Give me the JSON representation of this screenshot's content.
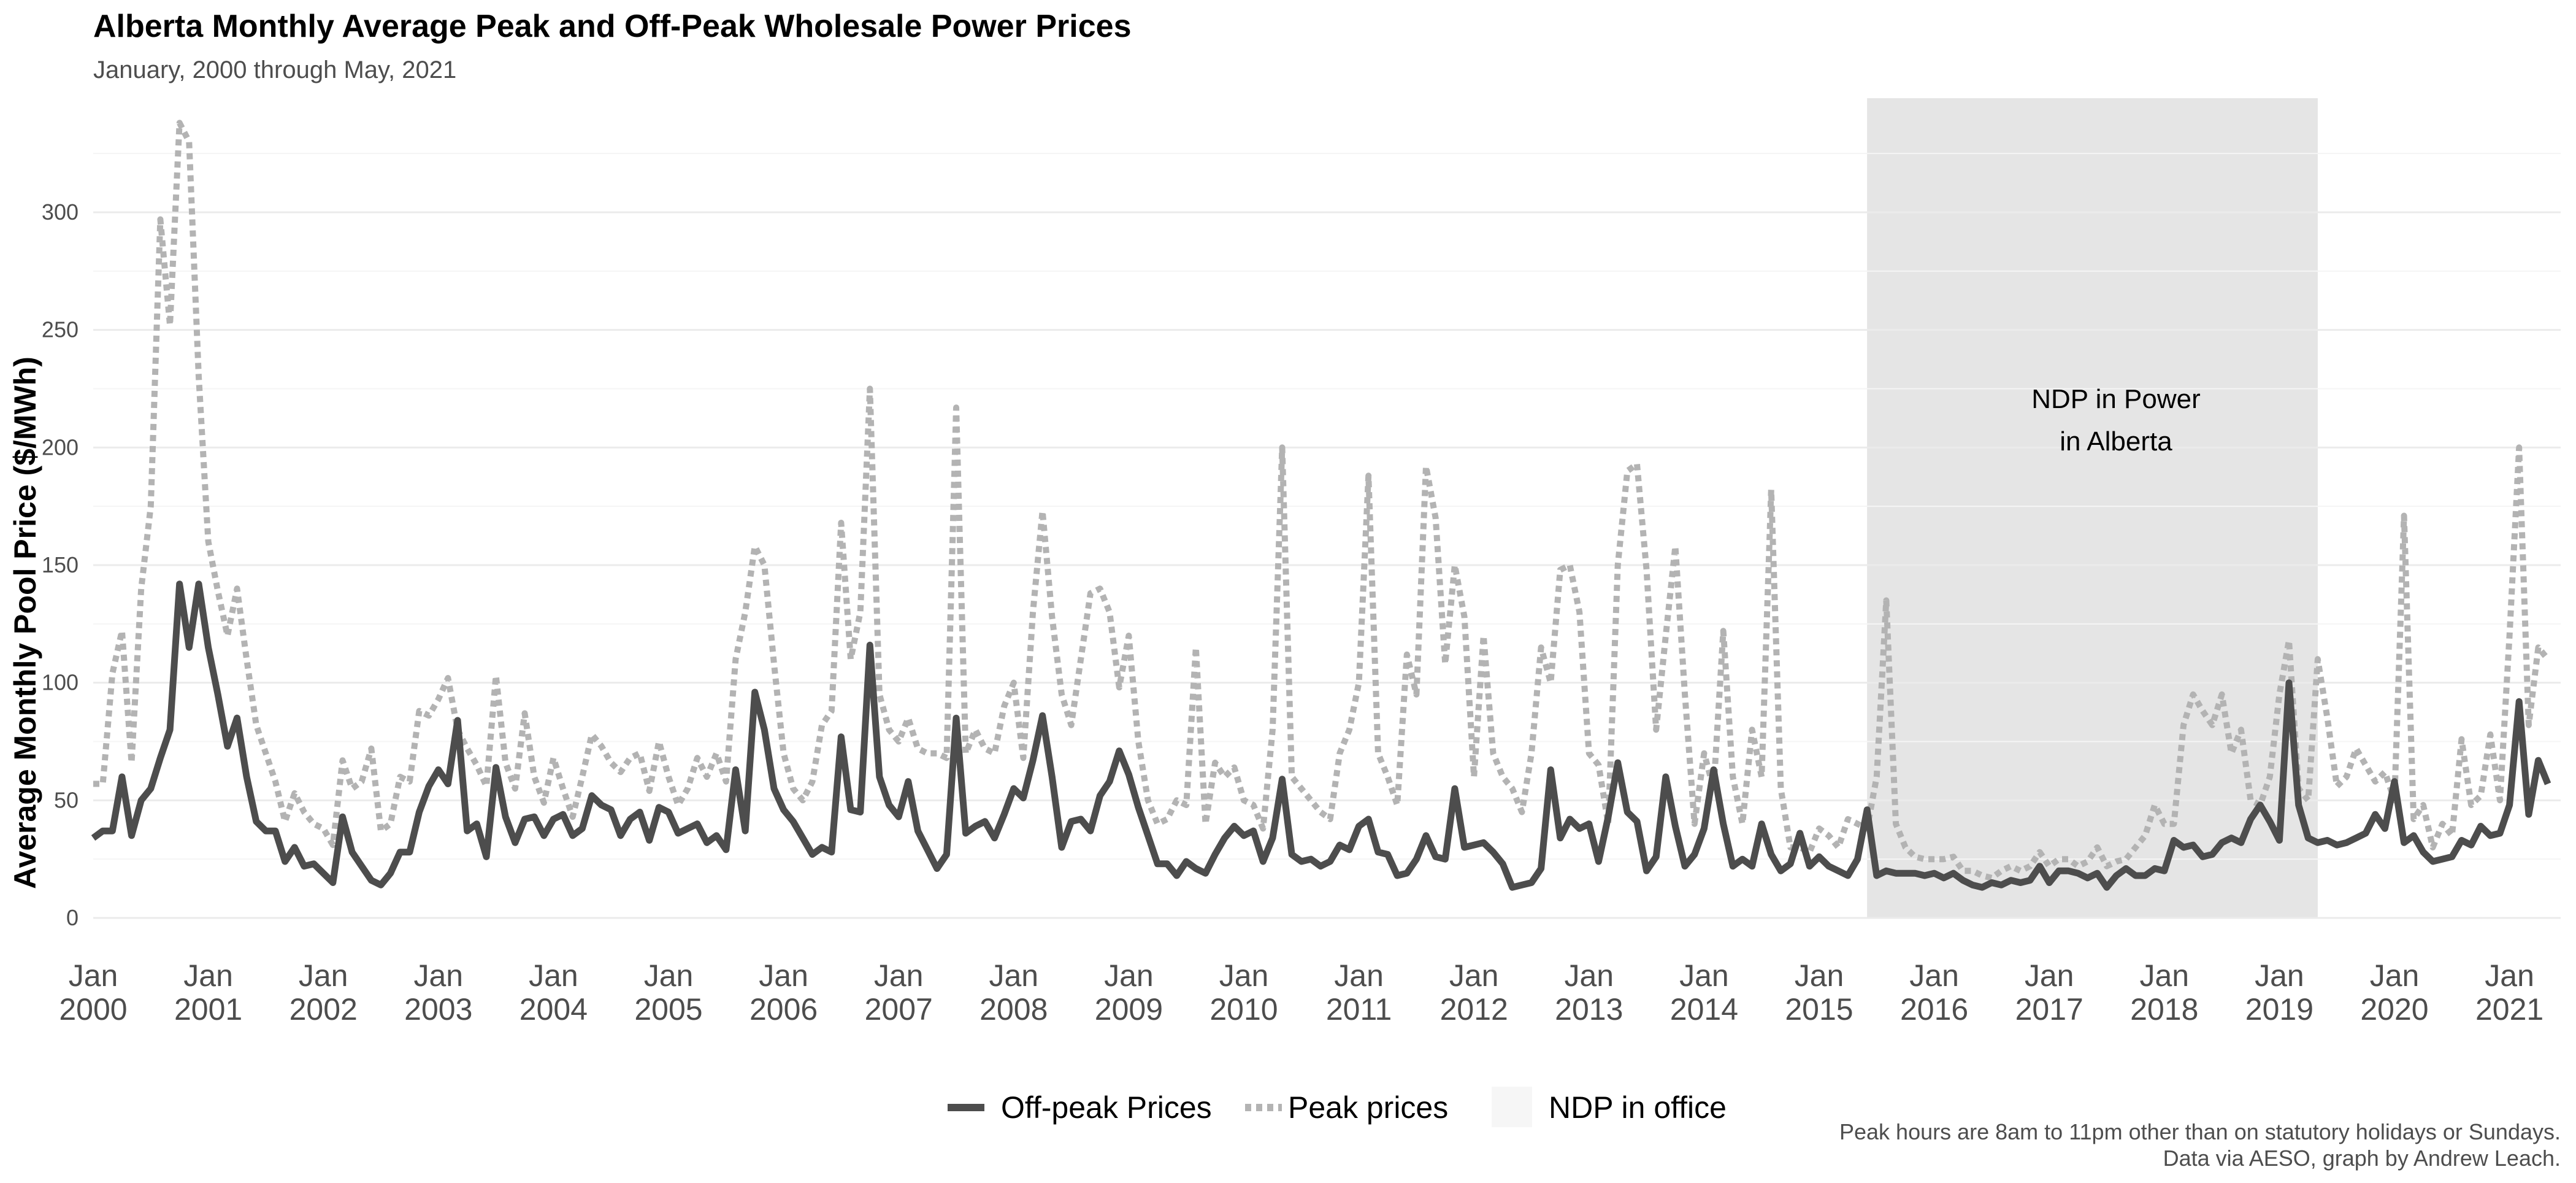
{
  "chart_data": {
    "type": "line",
    "title": "Alberta Monthly Average Peak and Off-Peak Wholesale Power Prices",
    "subtitle": "January, 2000 through May, 2021",
    "ylabel": "Average Monthly Pool Price ($/MWh)",
    "xlabel": "",
    "ylim": [
      0,
      350
    ],
    "yticks": [
      "0",
      "50",
      "100",
      "150",
      "200",
      "250",
      "300"
    ],
    "xticks": [
      {
        "month": "Jan",
        "year": "2000"
      },
      {
        "month": "Jan",
        "year": "2001"
      },
      {
        "month": "Jan",
        "year": "2002"
      },
      {
        "month": "Jan",
        "year": "2003"
      },
      {
        "month": "Jan",
        "year": "2004"
      },
      {
        "month": "Jan",
        "year": "2005"
      },
      {
        "month": "Jan",
        "year": "2006"
      },
      {
        "month": "Jan",
        "year": "2007"
      },
      {
        "month": "Jan",
        "year": "2008"
      },
      {
        "month": "Jan",
        "year": "2009"
      },
      {
        "month": "Jan",
        "year": "2010"
      },
      {
        "month": "Jan",
        "year": "2011"
      },
      {
        "month": "Jan",
        "year": "2012"
      },
      {
        "month": "Jan",
        "year": "2013"
      },
      {
        "month": "Jan",
        "year": "2014"
      },
      {
        "month": "Jan",
        "year": "2015"
      },
      {
        "month": "Jan",
        "year": "2016"
      },
      {
        "month": "Jan",
        "year": "2017"
      },
      {
        "month": "Jan",
        "year": "2018"
      },
      {
        "month": "Jan",
        "year": "2019"
      },
      {
        "month": "Jan",
        "year": "2020"
      },
      {
        "month": "Jan",
        "year": "2021"
      }
    ],
    "x_start": "2000-01",
    "grid": true,
    "legend_position": "bottom",
    "shaded_period": {
      "start": "2015-06",
      "end": "2019-05",
      "label_line1": "NDP in Power",
      "label_line2": "in Alberta",
      "color": "#e5e5e5"
    },
    "series": [
      {
        "name": "Off-peak Prices",
        "style": "solid",
        "color": "#4d4d4d",
        "values": [
          34,
          37,
          37,
          60,
          35,
          50,
          55,
          68,
          80,
          142,
          115,
          142,
          115,
          95,
          73,
          85,
          60,
          41,
          37,
          37,
          24,
          30,
          22,
          23,
          19,
          15,
          43,
          28,
          22,
          16,
          14,
          19,
          28,
          28,
          45,
          56,
          63,
          57,
          84,
          37,
          40,
          26,
          64,
          43,
          32,
          42,
          43,
          35,
          42,
          44,
          35,
          38,
          52,
          48,
          46,
          35,
          42,
          45,
          33,
          47,
          45,
          36,
          38,
          40,
          32,
          35,
          29,
          63,
          37,
          96,
          80,
          55,
          46,
          41,
          34,
          27,
          30,
          28,
          77,
          46,
          45,
          116,
          60,
          48,
          43,
          58,
          37,
          29,
          21,
          27,
          85,
          36,
          39,
          41,
          34,
          44,
          55,
          51,
          67,
          86,
          60,
          30,
          41,
          42,
          37,
          52,
          58,
          71,
          61,
          47,
          35,
          23,
          23,
          18,
          24,
          21,
          19,
          27,
          34,
          39,
          35,
          37,
          24,
          34,
          59,
          27,
          24,
          25,
          22,
          24,
          31,
          29,
          39,
          42,
          28,
          27,
          18,
          19,
          25,
          35,
          26,
          25,
          55,
          30,
          31,
          32,
          28,
          23,
          13,
          14,
          15,
          21,
          63,
          34,
          42,
          38,
          40,
          24,
          43,
          66,
          45,
          41,
          20,
          26,
          60,
          39,
          22,
          27,
          38,
          63,
          40,
          22,
          25,
          22,
          40,
          27,
          20,
          23,
          36,
          22,
          26,
          22,
          20,
          18,
          25,
          46,
          18,
          20,
          19,
          19,
          19,
          18,
          19,
          17,
          19,
          16,
          14,
          13,
          15,
          14,
          16,
          15,
          16,
          22,
          15,
          20,
          20,
          19,
          17,
          19,
          13,
          18,
          21,
          18,
          18,
          21,
          20,
          33,
          30,
          31,
          26,
          27,
          32,
          34,
          32,
          42,
          48,
          41,
          33,
          100,
          48,
          34,
          32,
          33,
          31,
          32,
          34,
          36,
          44,
          38,
          58,
          32,
          35,
          28,
          24,
          25,
          26,
          33,
          31,
          39,
          35,
          36,
          48,
          92,
          44,
          67,
          57
        ]
      },
      {
        "name": "Peak prices",
        "style": "dotted",
        "color": "#b3b3b3",
        "values": [
          57,
          57,
          104,
          122,
          66,
          140,
          175,
          297,
          252,
          338,
          330,
          230,
          160,
          139,
          120,
          140,
          110,
          82,
          70,
          58,
          41,
          53,
          45,
          40,
          38,
          31,
          67,
          55,
          58,
          72,
          37,
          40,
          60,
          58,
          88,
          86,
          93,
          102,
          80,
          72,
          65,
          56,
          103,
          66,
          55,
          87,
          60,
          49,
          68,
          55,
          43,
          60,
          78,
          73,
          66,
          62,
          68,
          70,
          54,
          75,
          60,
          48,
          55,
          68,
          60,
          70,
          58,
          110,
          130,
          158,
          150,
          108,
          70,
          55,
          50,
          58,
          82,
          88,
          168,
          110,
          130,
          225,
          95,
          80,
          75,
          85,
          72,
          70,
          70,
          68,
          217,
          70,
          80,
          72,
          70,
          90,
          100,
          68,
          130,
          173,
          128,
          95,
          82,
          110,
          138,
          140,
          130,
          98,
          120,
          75,
          50,
          40,
          42,
          50,
          48,
          115,
          40,
          66,
          60,
          64,
          50,
          48,
          38,
          80,
          200,
          60,
          55,
          50,
          45,
          42,
          70,
          80,
          100,
          188,
          70,
          60,
          48,
          112,
          95,
          192,
          170,
          108,
          150,
          128,
          60,
          120,
          70,
          60,
          55,
          45,
          70,
          115,
          100,
          148,
          150,
          130,
          70,
          65,
          40,
          150,
          190,
          193,
          148,
          80,
          120,
          158,
          95,
          40,
          70,
          55,
          122,
          60,
          40,
          80,
          60,
          182,
          55,
          30,
          30,
          28,
          38,
          35,
          30,
          42,
          40,
          38,
          60,
          135,
          40,
          30,
          26,
          25,
          25,
          25,
          26,
          20,
          20,
          18,
          17,
          20,
          22,
          20,
          22,
          28,
          22,
          25,
          25,
          22,
          24,
          30,
          22,
          24,
          25,
          30,
          35,
          48,
          40,
          40,
          82,
          95,
          88,
          82,
          95,
          70,
          80,
          50,
          48,
          60,
          95,
          118,
          55,
          50,
          110,
          85,
          56,
          60,
          72,
          65,
          58,
          62,
          50,
          171,
          42,
          48,
          30,
          40,
          35,
          76,
          48,
          52,
          78,
          50,
          120,
          200,
          82,
          115,
          110
        ]
      }
    ],
    "legend": {
      "offpeak_label": "Off-peak Prices",
      "peak_label": "Peak prices",
      "ndp_label": "NDP in office"
    },
    "caption": {
      "line1": "Peak hours are 8am to 11pm other than on statutory holidays or Sundays.",
      "line2": "Data via AESO, graph by Andrew Leach."
    }
  }
}
